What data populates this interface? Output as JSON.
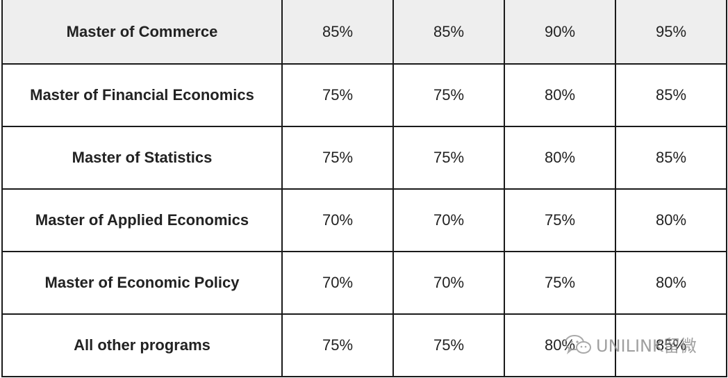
{
  "table": {
    "rows": [
      {
        "program": "Master of Commerce",
        "values": [
          "85%",
          "85%",
          "90%",
          "95%"
        ]
      },
      {
        "program": "Master of Financial Economics",
        "values": [
          "75%",
          "75%",
          "80%",
          "85%"
        ]
      },
      {
        "program": "Master of Statistics",
        "values": [
          "75%",
          "75%",
          "80%",
          "85%"
        ]
      },
      {
        "program": "Master of Applied Economics",
        "values": [
          "70%",
          "70%",
          "75%",
          "80%"
        ]
      },
      {
        "program": "Master of Economic Policy",
        "values": [
          "70%",
          "70%",
          "75%",
          "80%"
        ]
      },
      {
        "program": "All other programs",
        "values": [
          "75%",
          "75%",
          "80%",
          "85%"
        ]
      }
    ]
  },
  "watermark": {
    "text": "UNILINK留微",
    "icon": "wechat-icon"
  }
}
